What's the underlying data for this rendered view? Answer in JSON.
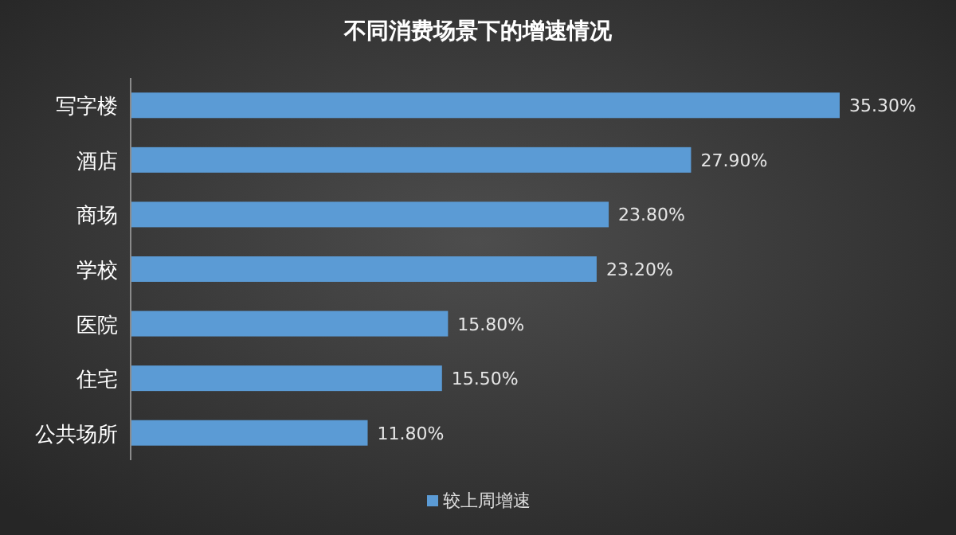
{
  "chart_data": {
    "type": "bar",
    "orientation": "horizontal",
    "title": "不同消费场景下的增速情况",
    "categories": [
      "写字楼",
      "酒店",
      "商场",
      "学校",
      "医院",
      "住宅",
      "公共场所"
    ],
    "series": [
      {
        "name": "较上周增速",
        "color": "#5b9bd5",
        "values": [
          35.3,
          27.9,
          23.8,
          23.2,
          15.8,
          15.5,
          11.8
        ],
        "value_labels": [
          "35.30%",
          "27.90%",
          "23.80%",
          "23.20%",
          "15.80%",
          "15.50%",
          "11.80%"
        ]
      }
    ],
    "legend": "bottom"
  }
}
